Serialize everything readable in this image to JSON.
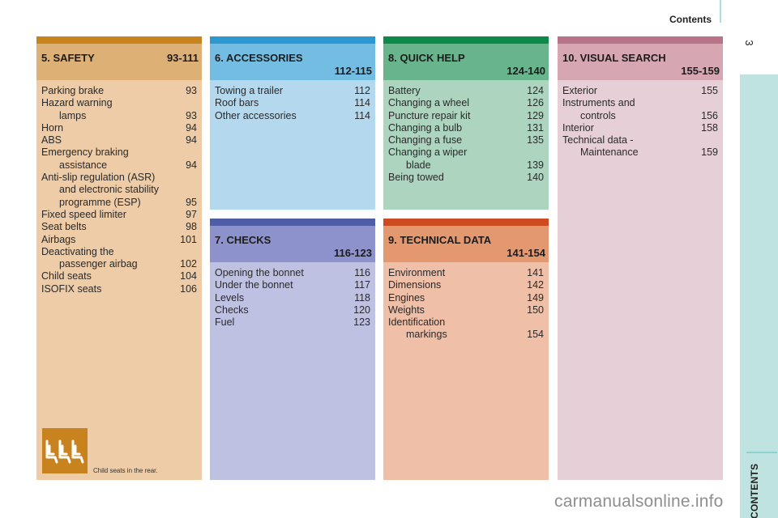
{
  "header": {
    "title": "Contents",
    "page_number": "3"
  },
  "sidebar": {
    "label": "CONTENTS"
  },
  "colors": {
    "safety": [
      "#c7841e",
      "#ddb075",
      "#edcca7"
    ],
    "accessories": [
      "#2d97d0",
      "#73bde3",
      "#b4d9ee"
    ],
    "quick_help": [
      "#0d8a47",
      "#68b48c",
      "#acd4bf"
    ],
    "visual_search": [
      "#b97388",
      "#d6a7b3",
      "#e6cfd6"
    ],
    "checks": [
      "#4e5da6",
      "#8e92cc",
      "#bfc1e3"
    ],
    "technical_data": [
      "#cd4b21",
      "#e49870",
      "#efbfa7"
    ],
    "sidebar": "#bfe3e1"
  },
  "sections": {
    "safety": {
      "title": "5. SAFETY",
      "range": "93-111",
      "items": [
        {
          "lines": [
            "Parking brake"
          ],
          "page": "93"
        },
        {
          "lines": [
            "Hazard warning",
            "lamps"
          ],
          "page": "93"
        },
        {
          "lines": [
            "Horn"
          ],
          "page": "94"
        },
        {
          "lines": [
            "ABS"
          ],
          "page": "94"
        },
        {
          "lines": [
            "Emergency braking",
            "assistance"
          ],
          "page": "94"
        },
        {
          "lines": [
            "Anti-slip regulation (ASR)",
            "and electronic stability",
            "programme (ESP)"
          ],
          "page": "95"
        },
        {
          "lines": [
            "Fixed speed limiter"
          ],
          "page": "97"
        },
        {
          "lines": [
            "Seat belts"
          ],
          "page": "98"
        },
        {
          "lines": [
            "Airbags"
          ],
          "page": "101"
        },
        {
          "lines": [
            "Deactivating the",
            "passenger airbag"
          ],
          "page": "102"
        },
        {
          "lines": [
            "Child seats"
          ],
          "page": "104"
        },
        {
          "lines": [
            "ISOFIX seats"
          ],
          "page": "106"
        }
      ],
      "icon": "child-seats-icon",
      "caption": "Child seats in the rear."
    },
    "accessories": {
      "title": "6. ACCESSORIES",
      "range": "112-115",
      "items": [
        {
          "lines": [
            "Towing a trailer"
          ],
          "page": "112"
        },
        {
          "lines": [
            "Roof bars"
          ],
          "page": "114"
        },
        {
          "lines": [
            "Other accessories"
          ],
          "page": "114"
        }
      ]
    },
    "quick_help": {
      "title": "8. QUICK HELP",
      "range": "124-140",
      "items": [
        {
          "lines": [
            "Battery"
          ],
          "page": "124"
        },
        {
          "lines": [
            "Changing a wheel"
          ],
          "page": "126"
        },
        {
          "lines": [
            "Puncture repair kit"
          ],
          "page": "129"
        },
        {
          "lines": [
            "Changing a bulb"
          ],
          "page": "131"
        },
        {
          "lines": [
            "Changing a fuse"
          ],
          "page": "135"
        },
        {
          "lines": [
            "Changing a wiper",
            "blade"
          ],
          "page": "139"
        },
        {
          "lines": [
            "Being towed"
          ],
          "page": "140"
        }
      ]
    },
    "visual_search": {
      "title": "10. VISUAL SEARCH",
      "range": "155-159",
      "items": [
        {
          "lines": [
            "Exterior"
          ],
          "page": "155"
        },
        {
          "lines": [
            "Instruments and",
            "controls"
          ],
          "page": "156"
        },
        {
          "lines": [
            "Interior"
          ],
          "page": "158"
        },
        {
          "lines": [
            "Technical data -",
            "Maintenance"
          ],
          "page": "159"
        }
      ]
    },
    "checks": {
      "title": "7. CHECKS",
      "range": "116-123",
      "items": [
        {
          "lines": [
            "Opening the bonnet"
          ],
          "page": "116"
        },
        {
          "lines": [
            "Under the bonnet"
          ],
          "page": "117"
        },
        {
          "lines": [
            "Levels"
          ],
          "page": "118"
        },
        {
          "lines": [
            "Checks"
          ],
          "page": "120"
        },
        {
          "lines": [
            "Fuel"
          ],
          "page": "123"
        }
      ]
    },
    "technical_data": {
      "title": "9. TECHNICAL DATA",
      "range": "141-154",
      "items": [
        {
          "lines": [
            "Environment"
          ],
          "page": "141"
        },
        {
          "lines": [
            "Dimensions"
          ],
          "page": "142"
        },
        {
          "lines": [
            "Engines"
          ],
          "page": "149"
        },
        {
          "lines": [
            "Weights"
          ],
          "page": "150"
        },
        {
          "lines": [
            "Identification",
            "markings"
          ],
          "page": "154"
        }
      ]
    }
  },
  "watermark": "carmanualsonline.info"
}
